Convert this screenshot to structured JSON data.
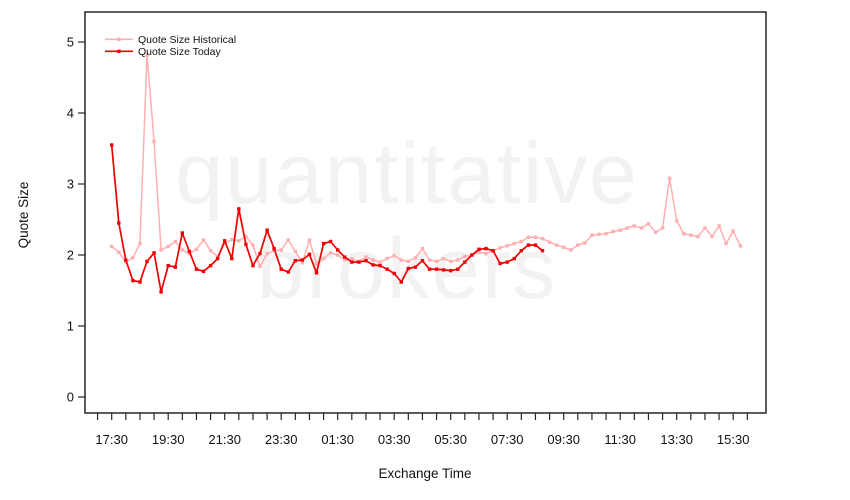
{
  "watermark": {
    "line1": "quantitative",
    "line2": "brokers",
    "color": "#f2f2f2"
  },
  "chart_data": {
    "type": "line",
    "title": "",
    "xlabel": "Exchange Time",
    "ylabel": "Quote Size",
    "ylim": [
      0,
      5
    ],
    "y_ticks": [
      0,
      1,
      2,
      3,
      4,
      5
    ],
    "x_tick_labels": [
      "17:30",
      "19:30",
      "21:30",
      "23:30",
      "01:30",
      "03:30",
      "05:30",
      "07:30",
      "09:30",
      "11:30",
      "13:30",
      "15:30"
    ],
    "x_minor_tick_interval_minutes": 30,
    "grid": false,
    "legend_position": "top-left",
    "series": [
      {
        "id": "historical",
        "name": "Quote Size Historical",
        "color": "#ffafb2",
        "start": "17:30",
        "interval_minutes": 15,
        "values": [
          2.12,
          2.04,
          1.9,
          1.96,
          2.16,
          4.82,
          3.6,
          2.07,
          2.12,
          2.19,
          2.07,
          2.02,
          2.08,
          2.21,
          2.06,
          1.98,
          2.16,
          2.22,
          2.2,
          2.26,
          2.14,
          1.84,
          2.02,
          2.06,
          2.07,
          2.21,
          2.05,
          1.89,
          2.21,
          1.88,
          1.95,
          2.03,
          2.0,
          1.93,
          1.95,
          1.91,
          1.97,
          1.93,
          1.9,
          1.95,
          1.99,
          1.93,
          1.91,
          1.96,
          2.09,
          1.93,
          1.91,
          1.95,
          1.91,
          1.93,
          1.98,
          2.0,
          2.04,
          2.02,
          2.06,
          2.1,
          2.13,
          2.16,
          2.19,
          2.25,
          2.25,
          2.23,
          2.18,
          2.14,
          2.11,
          2.07,
          2.14,
          2.17,
          2.28,
          2.29,
          2.3,
          2.33,
          2.35,
          2.38,
          2.41,
          2.38,
          2.44,
          2.32,
          2.38,
          3.08,
          2.48,
          2.3,
          2.28,
          2.26,
          2.38,
          2.26,
          2.41,
          2.16,
          2.34,
          2.13
        ]
      },
      {
        "id": "today",
        "name": "Quote Size Today",
        "color": "#ee0202",
        "start": "17:30",
        "interval_minutes": 15,
        "values": [
          3.55,
          2.45,
          1.93,
          1.64,
          1.62,
          1.91,
          2.03,
          1.48,
          1.85,
          1.83,
          2.31,
          2.05,
          1.8,
          1.77,
          1.85,
          1.95,
          2.2,
          1.95,
          2.65,
          2.15,
          1.85,
          2.02,
          2.35,
          2.09,
          1.8,
          1.76,
          1.92,
          1.93,
          2.01,
          1.75,
          2.16,
          2.19,
          2.07,
          1.97,
          1.9,
          1.9,
          1.92,
          1.86,
          1.85,
          1.8,
          1.74,
          1.62,
          1.81,
          1.83,
          1.92,
          1.8,
          1.8,
          1.79,
          1.78,
          1.8,
          1.9,
          2.0,
          2.08,
          2.09,
          2.06,
          1.88,
          1.9,
          1.95,
          2.06,
          2.14,
          2.14,
          2.06
        ]
      }
    ]
  }
}
